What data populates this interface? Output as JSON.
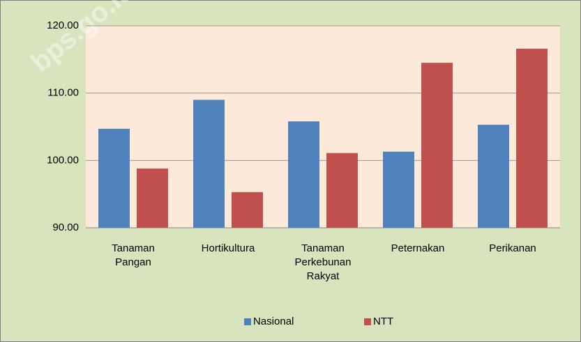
{
  "chart_data": {
    "type": "bar",
    "watermark": "bps.go.id",
    "categories": [
      "Tanaman\nPangan",
      "Hortikultura",
      "Tanaman\nPerkebunan\nRakyat",
      "Peternakan",
      "Perikanan"
    ],
    "series": [
      {
        "name": "Nasional",
        "color": "#4f81bd",
        "values": [
          104.7,
          109.0,
          105.8,
          101.3,
          105.3
        ]
      },
      {
        "name": "NTT",
        "color": "#c0504d",
        "values": [
          98.8,
          95.3,
          101.1,
          114.5,
          116.6
        ]
      }
    ],
    "ylim": [
      90,
      120
    ],
    "yticks": [
      {
        "value": 90,
        "label": "90.00"
      },
      {
        "value": 100,
        "label": "100.00"
      },
      {
        "value": 110,
        "label": "110.00"
      },
      {
        "value": 120,
        "label": "120.00"
      }
    ],
    "grid": true,
    "legend": "bottom"
  }
}
